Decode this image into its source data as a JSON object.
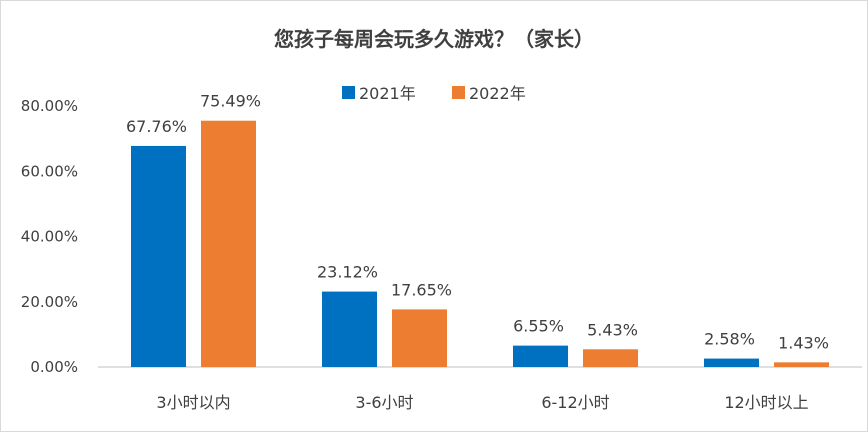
{
  "chart_data": {
    "type": "bar",
    "title": "您孩子每周会玩多久游戏？（家长）",
    "categories": [
      "3小时以内",
      "3-6小时",
      "6-12小时",
      "12小时以上"
    ],
    "series": [
      {
        "name": "2021年",
        "color": "#0070c0",
        "values": [
          67.76,
          23.12,
          6.55,
          2.58
        ],
        "labels": [
          "67.76%",
          "23.12%",
          "6.55%",
          "2.58%"
        ]
      },
      {
        "name": "2022年",
        "color": "#ed7d31",
        "values": [
          75.49,
          17.65,
          5.43,
          1.43
        ],
        "labels": [
          "75.49%",
          "17.65%",
          "5.43%",
          "1.43%"
        ]
      }
    ],
    "ylim": [
      0,
      80
    ],
    "yticks": [
      0,
      20,
      40,
      60,
      80
    ],
    "ytick_labels": [
      "0.00%",
      "20.00%",
      "40.00%",
      "60.00%",
      "80.00%"
    ],
    "grid": false,
    "legend_position": "top-center",
    "xlabel": "",
    "ylabel": ""
  }
}
